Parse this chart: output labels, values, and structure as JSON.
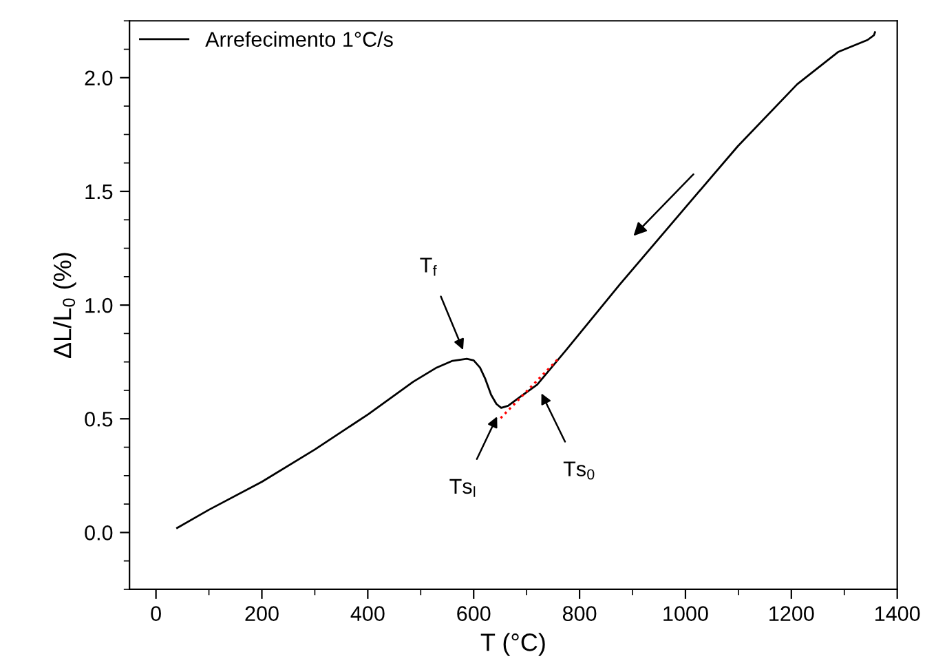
{
  "chart_data": {
    "type": "line",
    "xlabel": "T (°C)",
    "ylabel": "ΔL/L$_{0}$ (%)",
    "xlim": [
      -50,
      1400
    ],
    "xticks": [
      0,
      200,
      400,
      600,
      800,
      1000,
      1200,
      1400
    ],
    "ylim": [
      -0.25,
      2.25
    ],
    "yticks": [
      {
        "value": 0,
        "label": "0.0"
      },
      0.5,
      {
        "value": 1,
        "label": "1.0"
      },
      1.5,
      {
        "value": 2,
        "label": "2.0"
      }
    ],
    "legend": "top left",
    "grid": false,
    "line_style": "solid",
    "marker": "none",
    "series": [
      {
        "name": "Arrefecimento 1°C/s",
        "color": "#000000",
        "x": [
          40,
          100,
          200,
          300,
          401,
          486,
          530,
          560,
          587,
          600,
          612,
          622,
          633,
          643,
          652,
          665,
          690,
          720,
          776,
          876,
          999,
          1099,
          1211,
          1289,
          1344,
          1356,
          1358
        ],
        "values": [
          0.02,
          0.1,
          0.223,
          0.365,
          0.52,
          0.663,
          0.725,
          0.755,
          0.764,
          0.757,
          0.725,
          0.675,
          0.605,
          0.565,
          0.548,
          0.557,
          0.6,
          0.65,
          0.806,
          1.091,
          1.427,
          1.699,
          1.971,
          2.114,
          2.166,
          2.187,
          2.2
        ]
      },
      {
        "color": "#ff0000",
        "line_style": "dotted",
        "x": [
          651,
          759
        ],
        "values": [
          0.503,
          0.762
        ]
      }
    ],
    "annotations": [
      {
        "text": "T$_{f}$",
        "x": 587,
        "y": 0.764
      },
      {
        "text": "Ts$_{l}$",
        "x": 652,
        "y": 0.548
      },
      {
        "text": "Ts$_{0}$",
        "x": 720,
        "y": 0.65
      }
    ]
  }
}
